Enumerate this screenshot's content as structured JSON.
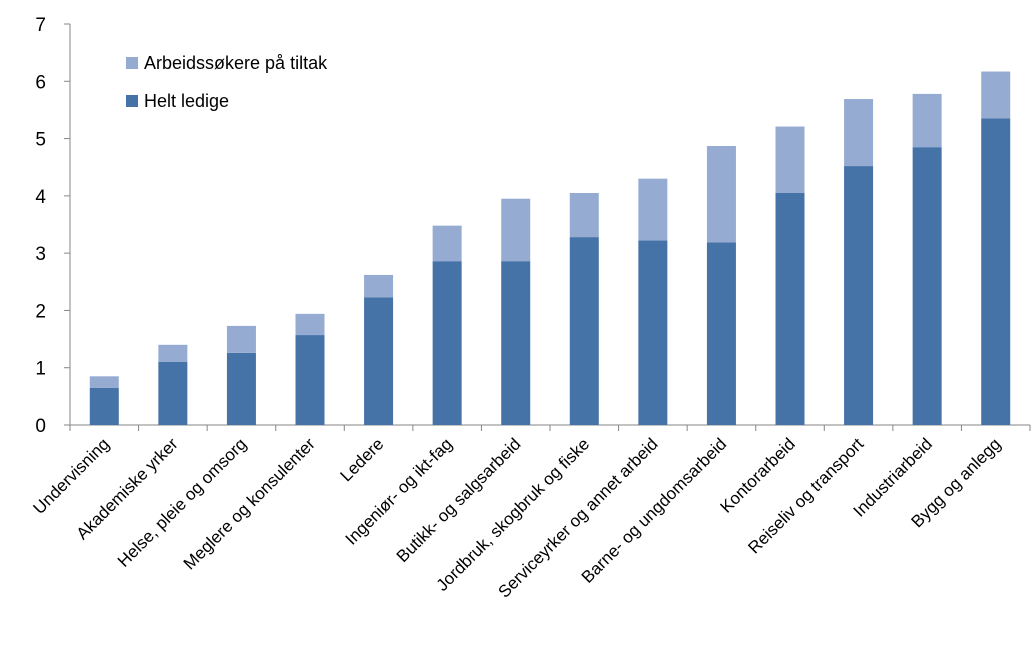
{
  "chart_data": {
    "type": "bar",
    "stacked": true,
    "title": "",
    "xlabel": "",
    "ylabel": "",
    "ylim": [
      0,
      7
    ],
    "yticks": [
      "0",
      "1",
      "2",
      "3",
      "4",
      "5",
      "6",
      "7"
    ],
    "grid": false,
    "legend_position": "top-left",
    "categories": [
      "Undervisning",
      "Akademiske yrker",
      "Helse, pleie og omsorg",
      "Meglere og konsulenter",
      "Ledere",
      "Ingeniør- og ikt-fag",
      "Butikk- og salgsarbeid",
      "Jordbruk, skogbruk og fiske",
      "Serviceyrker og annet arbeid",
      "Barne- og ungdomsarbeid",
      "Kontorarbeid",
      "Reiseliv og transport",
      "Industriarbeid",
      "Bygg og anlegg"
    ],
    "series": [
      {
        "name": "Helt ledige",
        "color": "#4572a7",
        "values": [
          0.65,
          1.1,
          1.26,
          1.57,
          2.23,
          2.86,
          2.86,
          3.28,
          3.22,
          3.19,
          4.05,
          4.52,
          4.85,
          5.35
        ]
      },
      {
        "name": "Arbeidssøkere på tiltak",
        "color": "#95abd1",
        "values": [
          0.2,
          0.3,
          0.47,
          0.37,
          0.39,
          0.62,
          1.09,
          0.77,
          1.08,
          1.68,
          1.16,
          1.17,
          0.93,
          0.82
        ]
      }
    ],
    "legend_order": [
      "Arbeidssøkere på tiltak",
      "Helt ledige"
    ]
  }
}
